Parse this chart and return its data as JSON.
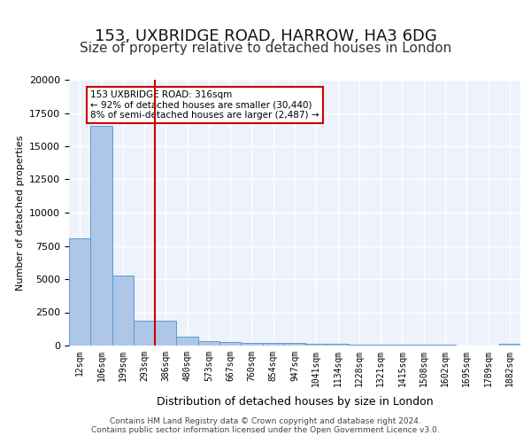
{
  "title1": "153, UXBRIDGE ROAD, HARROW, HA3 6DG",
  "title2": "Size of property relative to detached houses in London",
  "xlabel": "Distribution of detached houses by size in London",
  "ylabel": "Number of detached properties",
  "categories": [
    "12sqm",
    "106sqm",
    "199sqm",
    "293sqm",
    "386sqm",
    "480sqm",
    "573sqm",
    "667sqm",
    "760sqm",
    "854sqm",
    "947sqm",
    "1041sqm",
    "1134sqm",
    "1228sqm",
    "1321sqm",
    "1415sqm",
    "1508sqm",
    "1602sqm",
    "1695sqm",
    "1789sqm",
    "1882sqm"
  ],
  "values": [
    8100,
    16500,
    5300,
    1900,
    1900,
    700,
    350,
    250,
    220,
    200,
    170,
    150,
    120,
    100,
    80,
    60,
    50,
    40,
    30,
    20,
    150
  ],
  "bar_color": "#aec6e8",
  "bar_edge_color": "#5a9bd5",
  "red_line_x": 3.5,
  "annotation_text_line1": "153 UXBRIDGE ROAD: 316sqm",
  "annotation_text_line2": "← 92% of detached houses are smaller (30,440)",
  "annotation_text_line3": "8% of semi-detached houses are larger (2,487) →",
  "annotation_box_color": "#ffffff",
  "annotation_box_edge": "#cc0000",
  "footer_line1": "Contains HM Land Registry data © Crown copyright and database right 2024.",
  "footer_line2": "Contains public sector information licensed under the Open Government Licence v3.0.",
  "ylim": [
    0,
    20000
  ],
  "background_color": "#eef2fb",
  "grid_color": "#ffffff",
  "title1_fontsize": 13,
  "title2_fontsize": 11
}
